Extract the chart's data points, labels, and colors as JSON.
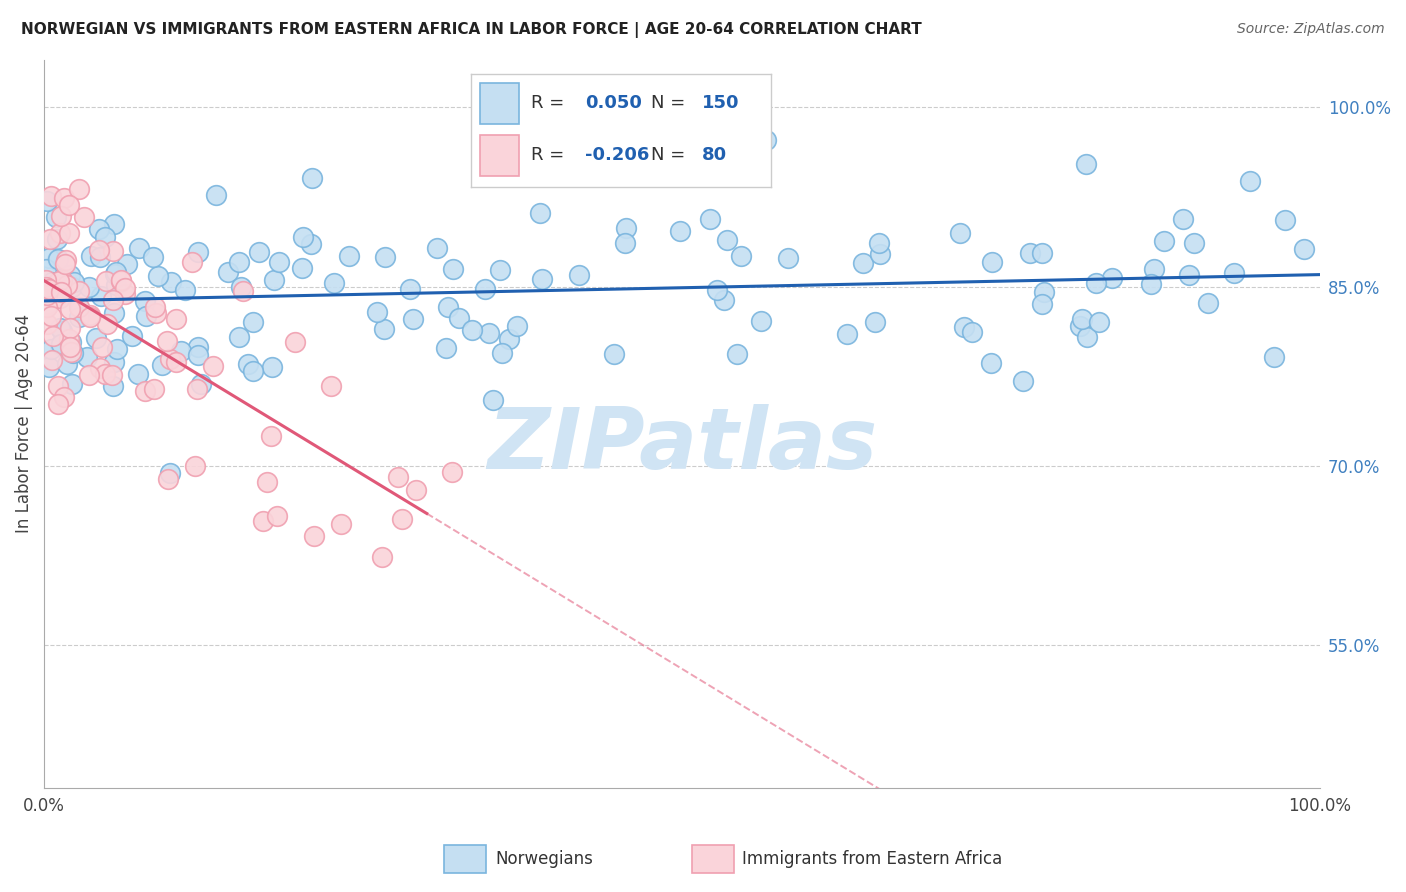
{
  "title": "NORWEGIAN VS IMMIGRANTS FROM EASTERN AFRICA IN LABOR FORCE | AGE 20-64 CORRELATION CHART",
  "source": "Source: ZipAtlas.com",
  "ylabel": "In Labor Force | Age 20-64",
  "xlim": [
    0.0,
    1.0
  ],
  "ylim": [
    0.43,
    1.04
  ],
  "y_ticks": [
    0.55,
    0.7,
    0.85,
    1.0
  ],
  "y_tick_labels": [
    "55.0%",
    "70.0%",
    "85.0%",
    "100.0%"
  ],
  "blue_R": "0.050",
  "blue_N": "150",
  "pink_R": "-0.206",
  "pink_N": "80",
  "blue_color": "#7ab5de",
  "blue_fill": "#c5dff2",
  "pink_color": "#f0a0b0",
  "pink_fill": "#fad4da",
  "blue_line_color": "#2060b0",
  "pink_line_color": "#e05878",
  "right_tick_color": "#4080c0",
  "background_color": "#ffffff",
  "grid_color": "#cccccc",
  "blue_seed": 42,
  "pink_seed": 77,
  "watermark": "ZIPatlas",
  "watermark_color": "#d0e4f4",
  "legend_blue_fill": "#c5dff2",
  "legend_blue_edge": "#7ab5de",
  "legend_pink_fill": "#fad4da",
  "legend_pink_edge": "#f0a0b0"
}
